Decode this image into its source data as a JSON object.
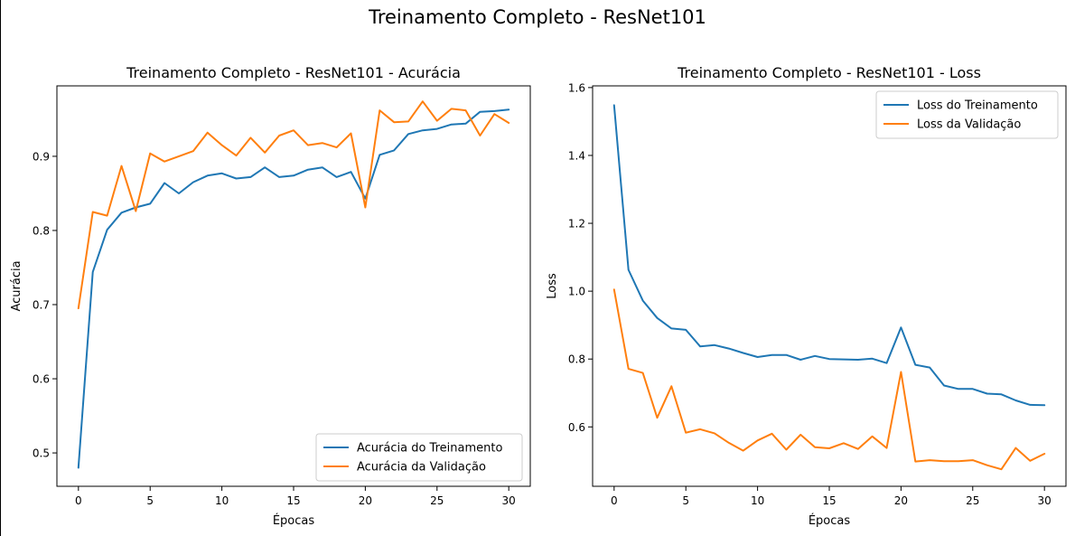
{
  "suptitle": "Treinamento Completo - ResNet101",
  "colors": {
    "train": "#1f77b4",
    "val": "#ff7f0e"
  },
  "chart_data": [
    {
      "type": "line",
      "title": "Treinamento Completo - ResNet101 - Acurácia",
      "xlabel": "Épocas",
      "ylabel": "Acurácia",
      "xlim": [
        -1.5,
        31.5
      ],
      "ylim": [
        0.455,
        0.995
      ],
      "xticks": [
        0,
        5,
        10,
        15,
        20,
        25,
        30
      ],
      "yticks": [
        0.5,
        0.6,
        0.7,
        0.8,
        0.9
      ],
      "ytick_labels": [
        "0.5",
        "0.6",
        "0.7",
        "0.8",
        "0.9"
      ],
      "legend_position": "lower-right",
      "x": [
        0,
        1,
        2,
        3,
        4,
        5,
        6,
        7,
        8,
        9,
        10,
        11,
        12,
        13,
        14,
        15,
        16,
        17,
        18,
        19,
        20,
        21,
        22,
        23,
        24,
        25,
        26,
        27,
        28,
        29,
        30
      ],
      "series": [
        {
          "name": "Acurácia do Treinamento",
          "color": "#1f77b4",
          "values": [
            0.48,
            0.744,
            0.801,
            0.824,
            0.831,
            0.836,
            0.864,
            0.85,
            0.865,
            0.874,
            0.877,
            0.87,
            0.872,
            0.885,
            0.872,
            0.874,
            0.882,
            0.885,
            0.872,
            0.879,
            0.843,
            0.902,
            0.908,
            0.93,
            0.935,
            0.937,
            0.943,
            0.944,
            0.96,
            0.961,
            0.963
          ]
        },
        {
          "name": "Acurácia da Validação",
          "color": "#ff7f0e",
          "values": [
            0.695,
            0.825,
            0.82,
            0.887,
            0.826,
            0.904,
            0.893,
            0.9,
            0.907,
            0.932,
            0.915,
            0.901,
            0.925,
            0.905,
            0.928,
            0.935,
            0.915,
            0.918,
            0.912,
            0.931,
            0.831,
            0.962,
            0.946,
            0.947,
            0.974,
            0.948,
            0.964,
            0.962,
            0.928,
            0.957,
            0.945
          ]
        }
      ]
    },
    {
      "type": "line",
      "title": "Treinamento Completo - ResNet101 - Loss",
      "xlabel": "Épocas",
      "ylabel": "Loss",
      "xlim": [
        -1.5,
        31.5
      ],
      "ylim": [
        0.425,
        1.605
      ],
      "xticks": [
        0,
        5,
        10,
        15,
        20,
        25,
        30
      ],
      "yticks": [
        0.6,
        0.8,
        1.0,
        1.2,
        1.4,
        1.6
      ],
      "ytick_labels": [
        "0.6",
        "0.8",
        "1.0",
        "1.2",
        "1.4",
        "1.6"
      ],
      "legend_position": "upper-right",
      "x": [
        0,
        1,
        2,
        3,
        4,
        5,
        6,
        7,
        8,
        9,
        10,
        11,
        12,
        13,
        14,
        15,
        16,
        17,
        18,
        19,
        20,
        21,
        22,
        23,
        24,
        25,
        26,
        27,
        28,
        29,
        30
      ],
      "series": [
        {
          "name": "Loss do Treinamento",
          "color": "#1f77b4",
          "values": [
            1.548,
            1.063,
            0.972,
            0.921,
            0.89,
            0.886,
            0.837,
            0.841,
            0.831,
            0.818,
            0.806,
            0.812,
            0.812,
            0.798,
            0.809,
            0.8,
            0.799,
            0.798,
            0.801,
            0.788,
            0.893,
            0.783,
            0.775,
            0.722,
            0.712,
            0.712,
            0.698,
            0.696,
            0.678,
            0.665,
            0.664
          ]
        },
        {
          "name": "Loss da Validação",
          "color": "#ff7f0e",
          "values": [
            1.005,
            0.771,
            0.759,
            0.627,
            0.72,
            0.583,
            0.593,
            0.581,
            0.553,
            0.53,
            0.56,
            0.58,
            0.533,
            0.577,
            0.54,
            0.537,
            0.552,
            0.535,
            0.572,
            0.538,
            0.762,
            0.498,
            0.502,
            0.499,
            0.499,
            0.502,
            0.487,
            0.475,
            0.538,
            0.5,
            0.521
          ]
        }
      ]
    }
  ]
}
